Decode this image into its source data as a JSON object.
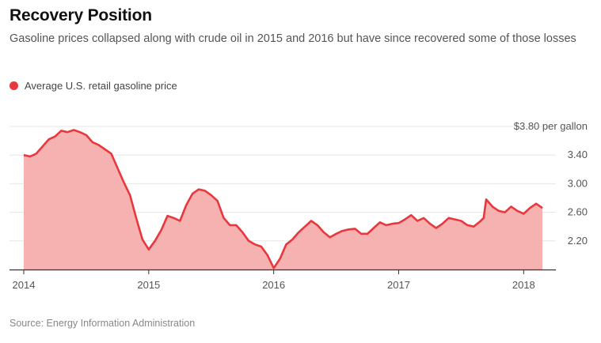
{
  "header": {
    "title": "Recovery Position",
    "subtitle": "Gasoline prices collapsed along with crude oil in 2015 and 2016 but have since recovered some of those losses"
  },
  "legend": {
    "label": "Average U.S. retail gasoline price",
    "color": "#e8383d"
  },
  "footer": {
    "source": "Source: Energy Information Administration"
  },
  "colors": {
    "line": "#e8383d",
    "area": "#f6b1b1",
    "grid": "#e6e6e6",
    "axis": "#333333"
  },
  "chart_data": {
    "type": "area",
    "title": "Recovery Position",
    "xlabel": "",
    "ylabel": "",
    "series": [
      {
        "name": "Average U.S. retail gasoline price",
        "x": [
          2014.0,
          2014.05,
          2014.1,
          2014.15,
          2014.2,
          2014.25,
          2014.3,
          2014.35,
          2014.4,
          2014.45,
          2014.5,
          2014.55,
          2014.6,
          2014.65,
          2014.7,
          2014.75,
          2014.8,
          2014.85,
          2014.9,
          2014.95,
          2015.0,
          2015.05,
          2015.1,
          2015.15,
          2015.2,
          2015.25,
          2015.3,
          2015.35,
          2015.4,
          2015.45,
          2015.5,
          2015.55,
          2015.6,
          2015.65,
          2015.7,
          2015.75,
          2015.8,
          2015.85,
          2015.9,
          2015.95,
          2016.0,
          2016.05,
          2016.1,
          2016.15,
          2016.2,
          2016.25,
          2016.3,
          2016.35,
          2016.4,
          2016.45,
          2016.5,
          2016.55,
          2016.6,
          2016.65,
          2016.7,
          2016.75,
          2016.8,
          2016.85,
          2016.9,
          2016.95,
          2017.0,
          2017.05,
          2017.1,
          2017.15,
          2017.2,
          2017.25,
          2017.3,
          2017.35,
          2017.4,
          2017.45,
          2017.5,
          2017.55,
          2017.6,
          2017.65,
          2017.68,
          2017.7,
          2017.75,
          2017.8,
          2017.85,
          2017.9,
          2017.95,
          2018.0,
          2018.05,
          2018.1,
          2018.15
        ],
        "values": [
          3.4,
          3.38,
          3.42,
          3.52,
          3.62,
          3.66,
          3.74,
          3.72,
          3.75,
          3.72,
          3.68,
          3.58,
          3.54,
          3.48,
          3.42,
          3.22,
          3.02,
          2.84,
          2.52,
          2.22,
          2.08,
          2.2,
          2.35,
          2.55,
          2.52,
          2.48,
          2.7,
          2.86,
          2.92,
          2.9,
          2.84,
          2.76,
          2.52,
          2.42,
          2.42,
          2.32,
          2.2,
          2.15,
          2.12,
          2.0,
          1.82,
          1.95,
          2.15,
          2.22,
          2.32,
          2.4,
          2.48,
          2.42,
          2.32,
          2.25,
          2.3,
          2.34,
          2.36,
          2.37,
          2.3,
          2.3,
          2.38,
          2.46,
          2.42,
          2.44,
          2.45,
          2.5,
          2.56,
          2.48,
          2.52,
          2.44,
          2.38,
          2.44,
          2.52,
          2.5,
          2.48,
          2.42,
          2.4,
          2.47,
          2.52,
          2.78,
          2.68,
          2.62,
          2.6,
          2.68,
          2.62,
          2.58,
          2.66,
          2.72,
          2.66
        ]
      }
    ],
    "xlim": [
      2014.0,
      2018.15
    ],
    "x_ticks": [
      {
        "value": 2014,
        "label": "2014"
      },
      {
        "value": 2015,
        "label": "2015"
      },
      {
        "value": 2016,
        "label": "2016"
      },
      {
        "value": 2017,
        "label": "2017"
      },
      {
        "value": 2018,
        "label": "2018"
      }
    ],
    "ylim": [
      1.8,
      3.8
    ],
    "y_ticks": [
      {
        "value": 3.8,
        "label": "$3.80 per gallon"
      },
      {
        "value": 3.4,
        "label": "3.40"
      },
      {
        "value": 3.0,
        "label": "3.00"
      },
      {
        "value": 2.6,
        "label": "2.60"
      },
      {
        "value": 2.2,
        "label": "2.20"
      }
    ],
    "grid": true,
    "legend_position": "top-left"
  }
}
